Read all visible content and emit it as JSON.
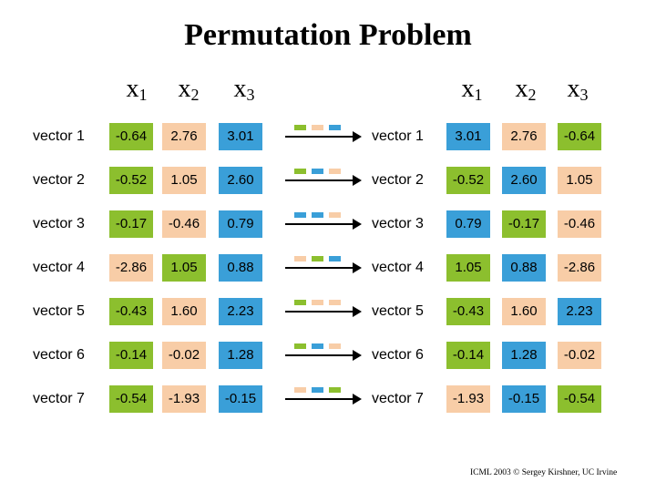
{
  "title": "Permutation Problem",
  "headers_left": {
    "x1": "x",
    "x1_sub": "1",
    "x2": "x",
    "x2_sub": "2",
    "x3": "x",
    "x3_sub": "3"
  },
  "headers_right": {
    "x1": "x",
    "x1_sub": "1",
    "x2": "x",
    "x2_sub": "2",
    "x3": "x",
    "x3_sub": "3"
  },
  "colors": {
    "green": "#8cbf2e",
    "orange": "#f8cda7",
    "blue": "#3a9fd8"
  },
  "rows": [
    {
      "label": "vector 1",
      "left": [
        "-0.64",
        "2.76",
        "3.01"
      ],
      "right_label": "vector 1",
      "right": [
        "3.01",
        "2.76",
        "-0.64"
      ]
    },
    {
      "label": "vector 2",
      "left": [
        "-0.52",
        "1.05",
        "2.60"
      ],
      "right_label": "vector 2",
      "right": [
        "-0.52",
        "2.60",
        "1.05"
      ]
    },
    {
      "label": "vector 3",
      "left": [
        "-0.17",
        "-0.46",
        "0.79"
      ],
      "right_label": "vector 3",
      "right": [
        "0.79",
        "-0.17",
        "-0.46"
      ]
    },
    {
      "label": "vector 4",
      "left": [
        "-2.86",
        "1.05",
        "0.88"
      ],
      "right_label": "vector 4",
      "right": [
        "1.05",
        "0.88",
        "-2.86"
      ]
    },
    {
      "label": "vector 5",
      "left": [
        "-0.43",
        "1.60",
        "2.23"
      ],
      "right_label": "vector 5",
      "right": [
        "-0.43",
        "1.60",
        "2.23"
      ]
    },
    {
      "label": "vector 6",
      "left": [
        "-0.14",
        "-0.02",
        "1.28"
      ],
      "right_label": "vector 6",
      "right": [
        "-0.14",
        "1.28",
        "-0.02"
      ]
    },
    {
      "label": "vector 7",
      "left": [
        "-0.54",
        "-1.93",
        "-0.15"
      ],
      "right_label": "vector 7",
      "right": [
        "-1.93",
        "-0.15",
        "-0.54"
      ]
    }
  ],
  "footer": "ICML 2003 © Sergey Kirshner, UC Irvine"
}
